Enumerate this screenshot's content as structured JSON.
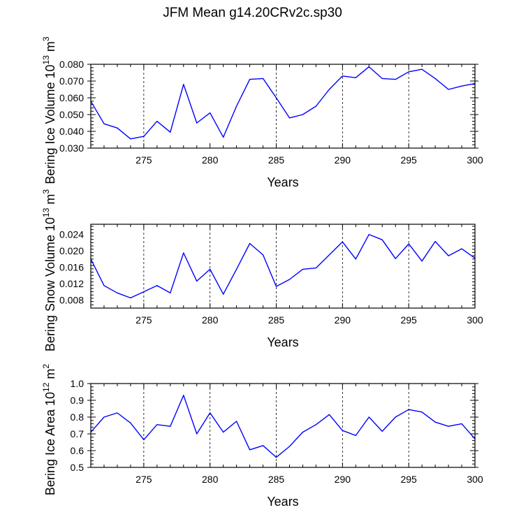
{
  "figure_title": "JFM Mean g14.20CRv2c.sp30",
  "colors": {
    "line": "#0000ff",
    "frame": "#000000",
    "grid": "#000000",
    "background": "#ffffff"
  },
  "chart_data": [
    {
      "type": "line",
      "ylabel": "Bering Ice Volume 10",
      "ylabel_exp": "13",
      "ylabel_unit": "m",
      "ylabel_unit_exp": "3",
      "xlabel": "Years",
      "xlim": [
        271,
        300
      ],
      "ylim": [
        0.03,
        0.08
      ],
      "xticks": [
        275,
        280,
        285,
        290,
        295,
        300
      ],
      "xtick_labels": [
        "275",
        "280",
        "285",
        "290",
        "295",
        "300"
      ],
      "yticks": [
        0.03,
        0.04,
        0.05,
        0.06,
        0.07,
        0.08
      ],
      "ytick_labels": [
        "0.030",
        "0.040",
        "0.050",
        "0.060",
        "0.070",
        "0.080"
      ],
      "grid_x": [
        275,
        285,
        290,
        295
      ],
      "x": [
        271,
        272,
        273,
        274,
        275,
        276,
        277,
        278,
        279,
        280,
        281,
        282,
        283,
        284,
        285,
        286,
        287,
        288,
        289,
        290,
        291,
        292,
        293,
        294,
        295,
        296,
        297,
        298,
        299,
        300
      ],
      "values": [
        0.058,
        0.0445,
        0.042,
        0.0355,
        0.037,
        0.046,
        0.0395,
        0.068,
        0.045,
        0.051,
        0.0365,
        0.055,
        0.071,
        0.0715,
        0.06,
        0.048,
        0.05,
        0.055,
        0.065,
        0.073,
        0.072,
        0.0785,
        0.0715,
        0.071,
        0.0755,
        0.077,
        0.0715,
        0.065,
        0.067,
        0.0685
      ]
    },
    {
      "type": "line",
      "ylabel": "Bering Snow Volume 10",
      "ylabel_exp": "13",
      "ylabel_unit": "m",
      "ylabel_unit_exp": "3",
      "xlabel": "Years",
      "xlim": [
        271,
        300
      ],
      "ylim": [
        0.006,
        0.0265
      ],
      "xticks": [
        275,
        280,
        285,
        290,
        295,
        300
      ],
      "xtick_labels": [
        "275",
        "280",
        "285",
        "290",
        "295",
        "300"
      ],
      "yticks": [
        0.008,
        0.012,
        0.016,
        0.02,
        0.024
      ],
      "ytick_labels": [
        "0.008",
        "0.012",
        "0.016",
        "0.020",
        "0.024"
      ],
      "grid_x": [
        275,
        280,
        285,
        290,
        295
      ],
      "x": [
        271,
        272,
        273,
        274,
        275,
        276,
        277,
        278,
        279,
        280,
        281,
        282,
        283,
        284,
        285,
        286,
        287,
        288,
        289,
        290,
        291,
        292,
        293,
        294,
        295,
        296,
        297,
        298,
        299,
        300
      ],
      "values": [
        0.018,
        0.0115,
        0.0097,
        0.0085,
        0.01,
        0.0115,
        0.0097,
        0.0195,
        0.0126,
        0.0155,
        0.0094,
        0.0155,
        0.0218,
        0.019,
        0.0113,
        0.013,
        0.0155,
        0.0158,
        0.019,
        0.0222,
        0.018,
        0.024,
        0.0227,
        0.0181,
        0.0217,
        0.0175,
        0.0223,
        0.0188,
        0.0205,
        0.0182
      ]
    },
    {
      "type": "line",
      "ylabel": "Bering Ice Area 10",
      "ylabel_exp": "12",
      "ylabel_unit": "m",
      "ylabel_unit_exp": "2",
      "xlabel": "Years",
      "xlim": [
        271,
        300
      ],
      "ylim": [
        0.5,
        1.0
      ],
      "xticks": [
        275,
        280,
        285,
        290,
        295,
        300
      ],
      "xtick_labels": [
        "275",
        "280",
        "285",
        "290",
        "295",
        "300"
      ],
      "yticks": [
        0.5,
        0.6,
        0.7,
        0.8,
        0.9,
        1.0
      ],
      "ytick_labels": [
        "0.5",
        "0.6",
        "0.7",
        "0.8",
        "0.9",
        "1.0"
      ],
      "grid_x": [
        275,
        280,
        285,
        290,
        295
      ],
      "x": [
        271,
        272,
        273,
        274,
        275,
        276,
        277,
        278,
        279,
        280,
        281,
        282,
        283,
        284,
        285,
        286,
        287,
        288,
        289,
        290,
        291,
        292,
        293,
        294,
        295,
        296,
        297,
        298,
        299,
        300
      ],
      "values": [
        0.71,
        0.8,
        0.825,
        0.765,
        0.665,
        0.755,
        0.745,
        0.93,
        0.7,
        0.825,
        0.71,
        0.775,
        0.605,
        0.63,
        0.56,
        0.625,
        0.71,
        0.755,
        0.815,
        0.72,
        0.69,
        0.8,
        0.715,
        0.8,
        0.845,
        0.83,
        0.77,
        0.745,
        0.76,
        0.67
      ]
    }
  ]
}
